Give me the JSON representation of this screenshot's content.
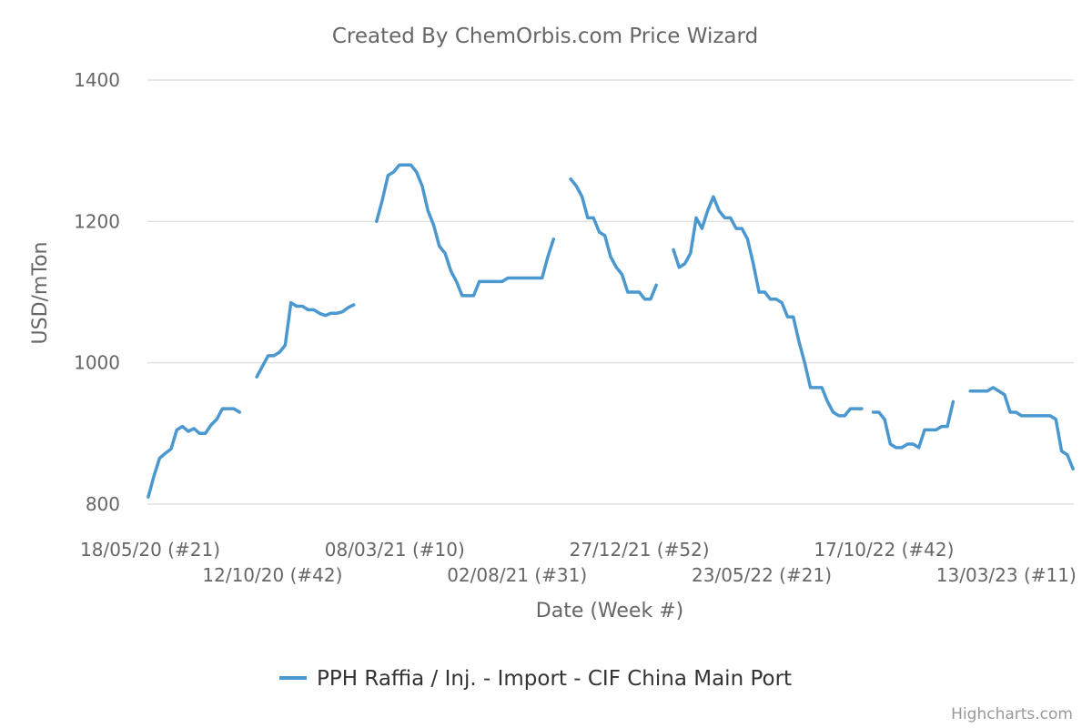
{
  "chart_data": {
    "type": "line",
    "title": "Created By ChemOrbis.com Price Wizard",
    "xlabel": "Date (Week #)",
    "ylabel": "USD/mTon",
    "ylim": [
      800,
      1400
    ],
    "yticks": [
      800,
      1000,
      1200,
      1400
    ],
    "x_tick_labels": [
      "18/05/20 (#21)",
      "12/10/20 (#42)",
      "08/03/21 (#10)",
      "02/08/21 (#31)",
      "27/12/21 (#52)",
      "23/05/22 (#21)",
      "17/10/22 (#42)",
      "13/03/23 (#11)"
    ],
    "grid": true,
    "legend_position": "bottom-center",
    "credits": "Highcharts.com",
    "series": [
      {
        "name": "PPH Raffia / Inj. - Import - CIF China Main Port",
        "color": "#4a98cf",
        "segments": [
          [
            [
              "2020-05-18",
              810
            ],
            [
              "2020-05-25",
              840
            ],
            [
              "2020-06-01",
              865
            ],
            [
              "2020-06-08",
              872
            ],
            [
              "2020-06-15",
              878
            ],
            [
              "2020-06-22",
              905
            ],
            [
              "2020-06-29",
              910
            ],
            [
              "2020-07-06",
              903
            ],
            [
              "2020-07-13",
              907
            ],
            [
              "2020-07-20",
              900
            ],
            [
              "2020-07-27",
              900
            ],
            [
              "2020-08-03",
              912
            ],
            [
              "2020-08-10",
              920
            ],
            [
              "2020-08-17",
              935
            ],
            [
              "2020-08-24",
              935
            ],
            [
              "2020-08-31",
              935
            ],
            [
              "2020-09-07",
              930
            ]
          ],
          [
            [
              "2020-09-28",
              980
            ],
            [
              "2020-10-05",
              995
            ],
            [
              "2020-10-12",
              1010
            ],
            [
              "2020-10-19",
              1010
            ],
            [
              "2020-10-26",
              1015
            ],
            [
              "2020-11-02",
              1025
            ],
            [
              "2020-11-09",
              1085
            ],
            [
              "2020-11-16",
              1080
            ],
            [
              "2020-11-23",
              1080
            ],
            [
              "2020-11-30",
              1075
            ],
            [
              "2020-12-07",
              1075
            ],
            [
              "2020-12-14",
              1070
            ],
            [
              "2020-12-21",
              1067
            ],
            [
              "2020-12-28",
              1070
            ],
            [
              "2021-01-04",
              1070
            ],
            [
              "2021-01-11",
              1072
            ],
            [
              "2021-01-18",
              1078
            ],
            [
              "2021-01-25",
              1082
            ]
          ],
          [
            [
              "2021-02-22",
              1200
            ],
            [
              "2021-03-01",
              1230
            ],
            [
              "2021-03-08",
              1265
            ],
            [
              "2021-03-15",
              1270
            ],
            [
              "2021-03-22",
              1280
            ],
            [
              "2021-03-29",
              1280
            ],
            [
              "2021-04-05",
              1280
            ],
            [
              "2021-04-12",
              1270
            ],
            [
              "2021-04-19",
              1250
            ],
            [
              "2021-04-26",
              1215
            ],
            [
              "2021-05-03",
              1195
            ],
            [
              "2021-05-10",
              1165
            ],
            [
              "2021-05-17",
              1155
            ],
            [
              "2021-05-24",
              1130
            ],
            [
              "2021-05-31",
              1115
            ],
            [
              "2021-06-07",
              1095
            ],
            [
              "2021-06-14",
              1095
            ],
            [
              "2021-06-21",
              1095
            ],
            [
              "2021-06-28",
              1115
            ],
            [
              "2021-07-05",
              1115
            ],
            [
              "2021-07-12",
              1115
            ],
            [
              "2021-07-19",
              1115
            ],
            [
              "2021-07-26",
              1115
            ],
            [
              "2021-08-02",
              1120
            ],
            [
              "2021-08-09",
              1120
            ],
            [
              "2021-08-16",
              1120
            ],
            [
              "2021-08-23",
              1120
            ],
            [
              "2021-08-30",
              1120
            ],
            [
              "2021-09-06",
              1120
            ],
            [
              "2021-09-13",
              1120
            ],
            [
              "2021-09-20",
              1150
            ],
            [
              "2021-09-27",
              1175
            ]
          ],
          [
            [
              "2021-10-18",
              1260
            ],
            [
              "2021-10-25",
              1250
            ],
            [
              "2021-11-01",
              1235
            ],
            [
              "2021-11-08",
              1205
            ],
            [
              "2021-11-15",
              1205
            ],
            [
              "2021-11-22",
              1185
            ],
            [
              "2021-11-29",
              1180
            ],
            [
              "2021-12-06",
              1150
            ],
            [
              "2021-12-13",
              1135
            ],
            [
              "2021-12-20",
              1125
            ],
            [
              "2021-12-27",
              1100
            ],
            [
              "2022-01-03",
              1100
            ],
            [
              "2022-01-10",
              1100
            ],
            [
              "2022-01-17",
              1090
            ],
            [
              "2022-01-24",
              1090
            ],
            [
              "2022-01-31",
              1110
            ]
          ],
          [
            [
              "2022-02-21",
              1160
            ],
            [
              "2022-02-28",
              1135
            ],
            [
              "2022-03-07",
              1140
            ],
            [
              "2022-03-14",
              1155
            ],
            [
              "2022-03-21",
              1205
            ],
            [
              "2022-03-28",
              1190
            ],
            [
              "2022-04-04",
              1215
            ],
            [
              "2022-04-11",
              1235
            ],
            [
              "2022-04-18",
              1215
            ],
            [
              "2022-04-25",
              1205
            ],
            [
              "2022-05-02",
              1205
            ],
            [
              "2022-05-09",
              1190
            ],
            [
              "2022-05-16",
              1190
            ],
            [
              "2022-05-23",
              1175
            ],
            [
              "2022-05-30",
              1140
            ],
            [
              "2022-06-06",
              1100
            ],
            [
              "2022-06-13",
              1100
            ],
            [
              "2022-06-20",
              1090
            ],
            [
              "2022-06-27",
              1090
            ],
            [
              "2022-07-04",
              1085
            ],
            [
              "2022-07-11",
              1065
            ],
            [
              "2022-07-18",
              1065
            ],
            [
              "2022-07-25",
              1030
            ],
            [
              "2022-08-01",
              1000
            ],
            [
              "2022-08-08",
              965
            ],
            [
              "2022-08-15",
              965
            ],
            [
              "2022-08-22",
              965
            ],
            [
              "2022-08-29",
              945
            ],
            [
              "2022-09-05",
              930
            ],
            [
              "2022-09-12",
              925
            ],
            [
              "2022-09-19",
              925
            ],
            [
              "2022-09-26",
              935
            ],
            [
              "2022-10-03",
              935
            ],
            [
              "2022-10-10",
              935
            ]
          ],
          [
            [
              "2022-10-24",
              930
            ],
            [
              "2022-10-31",
              930
            ],
            [
              "2022-11-07",
              920
            ],
            [
              "2022-11-14",
              885
            ],
            [
              "2022-11-21",
              880
            ],
            [
              "2022-11-28",
              880
            ],
            [
              "2022-12-05",
              885
            ],
            [
              "2022-12-12",
              885
            ],
            [
              "2022-12-19",
              880
            ],
            [
              "2022-12-26",
              905
            ],
            [
              "2023-01-02",
              905
            ],
            [
              "2023-01-09",
              905
            ],
            [
              "2023-01-16",
              910
            ],
            [
              "2023-01-23",
              910
            ],
            [
              "2023-01-30",
              945
            ]
          ],
          [
            [
              "2023-02-20",
              960
            ],
            [
              "2023-02-27",
              960
            ],
            [
              "2023-03-06",
              960
            ],
            [
              "2023-03-13",
              960
            ],
            [
              "2023-03-20",
              965
            ],
            [
              "2023-03-27",
              960
            ],
            [
              "2023-04-03",
              955
            ],
            [
              "2023-04-10",
              930
            ],
            [
              "2023-04-17",
              930
            ],
            [
              "2023-04-24",
              925
            ],
            [
              "2023-05-01",
              925
            ],
            [
              "2023-05-08",
              925
            ],
            [
              "2023-05-15",
              925
            ],
            [
              "2023-05-22",
              925
            ],
            [
              "2023-05-29",
              925
            ],
            [
              "2023-06-05",
              920
            ],
            [
              "2023-06-12",
              875
            ],
            [
              "2023-06-19",
              870
            ],
            [
              "2023-06-26",
              850
            ]
          ]
        ]
      }
    ]
  }
}
